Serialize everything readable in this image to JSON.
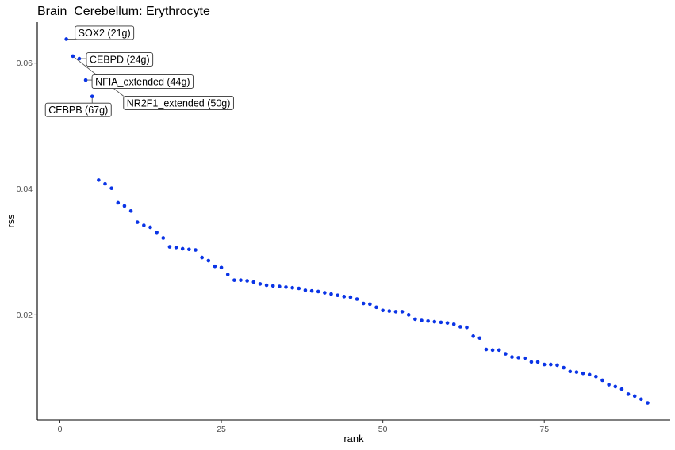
{
  "chart_data": {
    "type": "scatter",
    "title": "Brain_Cerebellum: Erythrocyte",
    "xlabel": "rank",
    "ylabel": "rss",
    "xlim": [
      -3.5,
      94.5
    ],
    "ylim": [
      0.0033,
      0.0665
    ],
    "x_ticks": [
      0,
      25,
      50,
      75
    ],
    "x_tick_labels": [
      "0",
      "25",
      "50",
      "75"
    ],
    "y_ticks": [
      0.02,
      0.04,
      0.06
    ],
    "y_tick_labels": [
      "0.02",
      "0.04",
      "0.06"
    ],
    "grid": false,
    "point_color": "#0a34e6",
    "x": [
      1,
      2,
      3,
      4,
      5,
      6,
      7,
      8,
      9,
      10,
      11,
      12,
      13,
      14,
      15,
      16,
      17,
      18,
      19,
      20,
      21,
      22,
      23,
      24,
      25,
      26,
      27,
      28,
      29,
      30,
      31,
      32,
      33,
      34,
      35,
      36,
      37,
      38,
      39,
      40,
      41,
      42,
      43,
      44,
      45,
      46,
      47,
      48,
      49,
      50,
      51,
      52,
      53,
      54,
      55,
      56,
      57,
      58,
      59,
      60,
      61,
      62,
      63,
      64,
      65,
      66,
      67,
      68,
      69,
      70,
      71,
      72,
      73,
      74,
      75,
      76,
      77,
      78,
      79,
      80,
      81,
      82,
      83,
      84,
      85,
      86,
      87,
      88,
      89,
      90,
      91
    ],
    "y": [
      0.0638,
      0.0611,
      0.0607,
      0.0573,
      0.0547,
      0.0414,
      0.0408,
      0.0401,
      0.0378,
      0.0373,
      0.0365,
      0.0347,
      0.0342,
      0.0339,
      0.0331,
      0.0322,
      0.0308,
      0.0307,
      0.0305,
      0.0304,
      0.0303,
      0.0291,
      0.0286,
      0.0277,
      0.0275,
      0.0264,
      0.0255,
      0.0255,
      0.0254,
      0.0252,
      0.0249,
      0.0247,
      0.0246,
      0.0245,
      0.0244,
      0.0243,
      0.0242,
      0.0239,
      0.0238,
      0.0237,
      0.0235,
      0.0233,
      0.0231,
      0.0229,
      0.0228,
      0.0225,
      0.0218,
      0.0217,
      0.0212,
      0.0207,
      0.0206,
      0.0205,
      0.0205,
      0.02,
      0.0193,
      0.0191,
      0.019,
      0.0189,
      0.0188,
      0.0187,
      0.0185,
      0.0181,
      0.018,
      0.0166,
      0.0163,
      0.0145,
      0.0144,
      0.0144,
      0.0138,
      0.0133,
      0.0132,
      0.0131,
      0.0125,
      0.0125,
      0.0121,
      0.0121,
      0.012,
      0.0116,
      0.011,
      0.0109,
      0.0107,
      0.0105,
      0.0102,
      0.0096,
      0.0089,
      0.0086,
      0.0082,
      0.0074,
      0.0071,
      0.0066,
      0.006
    ],
    "annotations": [
      {
        "label": "SOX2 (21g)",
        "x": 1,
        "y": 0.0638
      },
      {
        "label": "CEBPD (24g)",
        "x": 3,
        "y": 0.0607
      },
      {
        "label": "NFIA_extended (44g)",
        "x": 4,
        "y": 0.0573
      },
      {
        "label": "NR2F1_extended (50g)",
        "x": 2,
        "y": 0.0611
      },
      {
        "label": "CEBPB (67g)",
        "x": 5,
        "y": 0.0547
      }
    ]
  }
}
